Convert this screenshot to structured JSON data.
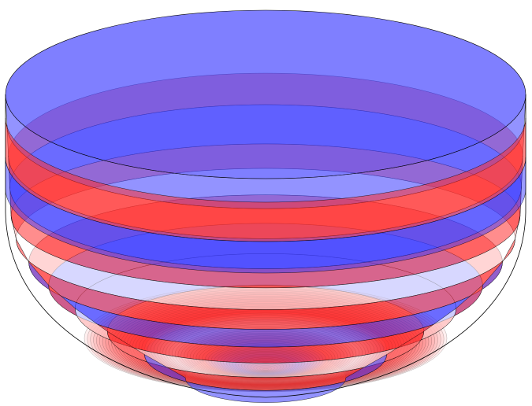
{
  "scene": {
    "subject": "translucent-striped-bowl",
    "colors": {
      "blue": "#3a3aff",
      "red": "#ff3030",
      "white": "#ffffff",
      "outline": "#000000"
    },
    "band_pattern": [
      "blue",
      "red",
      "blue",
      "red",
      "white",
      "red",
      "blue",
      "red",
      "white",
      "red",
      "blue"
    ]
  }
}
